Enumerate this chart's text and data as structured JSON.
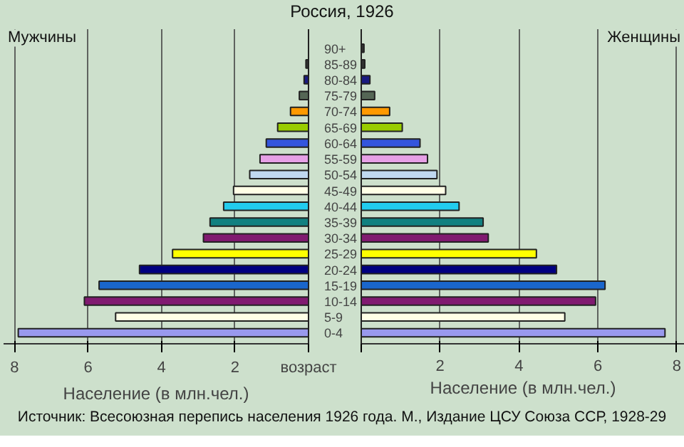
{
  "chart_data": [
    {
      "type": "bar",
      "orientation": "horizontal",
      "title": "Мужчины",
      "subtitle": "Россия, 1926",
      "xlabel": "Население (в млн.чел.)",
      "annotations": [
        "Источник: Всесоюзная перепись населения 1926 года. М., Издание ЦСУ Союза ССР, 1928-29"
      ],
      "categories": [
        "90+",
        "85-89",
        "80-84",
        "75-79",
        "70-74",
        "65-69",
        "60-64",
        "55-59",
        "50-54",
        "45-49",
        "40-44",
        "35-39",
        "30-34",
        "25-29",
        "20-24",
        "15-19",
        "10-14",
        "5-9",
        "0-4"
      ],
      "values": [
        null,
        0.07,
        0.12,
        0.25,
        0.49,
        0.84,
        1.15,
        1.32,
        1.6,
        2.04,
        2.31,
        2.68,
        2.86,
        3.7,
        4.6,
        5.7,
        6.1,
        5.25,
        7.9
      ],
      "colors": [
        "#333333",
        "#333333",
        "#1a1a80",
        "#556655",
        "#ff9900",
        "#99cc00",
        "#3355dd",
        "#e6a0e6",
        "#c0d8f0",
        "#ffffe6",
        "#22ccee",
        "#118080",
        "#801a70",
        "#ffff00",
        "#000080",
        "#1a66cc",
        "#801a70",
        "#ffffe6",
        "#9999ee"
      ],
      "xlim": [
        8.3,
        0
      ],
      "xticks": [
        8,
        6,
        4,
        2,
        {
          "value": 0,
          "label": "возраст"
        }
      ],
      "grid": "x"
    },
    {
      "type": "bar",
      "orientation": "horizontal",
      "title": "Женщины",
      "xlabel": "Население (в млн.чел.)",
      "categories": [
        null,
        null,
        null,
        null,
        null,
        null,
        null,
        null,
        null,
        null,
        null,
        null,
        null,
        null,
        null,
        null,
        null,
        null,
        null
      ],
      "values": [
        0.07,
        0.09,
        0.22,
        0.34,
        0.72,
        1.04,
        1.49,
        1.68,
        1.92,
        2.14,
        2.48,
        3.09,
        3.22,
        4.44,
        4.95,
        6.18,
        5.94,
        5.16,
        7.7
      ],
      "colors": [
        "#333333",
        "#333333",
        "#1a1a80",
        "#556655",
        "#ff9900",
        "#99cc00",
        "#3355dd",
        "#e6a0e6",
        "#c0d8f0",
        "#ffffe6",
        "#22ccee",
        "#118080",
        "#801a70",
        "#ffff00",
        "#000080",
        "#1a66cc",
        "#801a70",
        "#ffffe6",
        "#9999ee"
      ],
      "xlim": [
        0,
        8.2
      ],
      "xticks": [
        {
          "value": 0,
          "label": null
        },
        2,
        4,
        6,
        8
      ],
      "grid": "x",
      "tick_labels": "x"
    }
  ]
}
